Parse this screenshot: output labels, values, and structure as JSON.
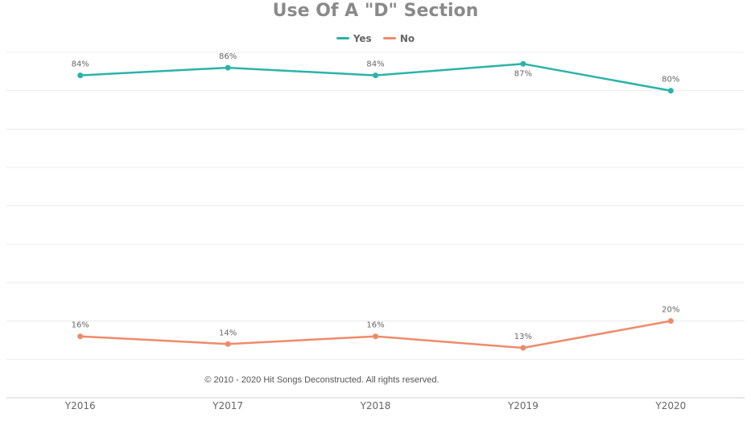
{
  "chart_data": {
    "type": "line",
    "title": "Use Of A \"D\" Section",
    "categories": [
      "Y2016",
      "Y2017",
      "Y2018",
      "Y2019",
      "Y2020"
    ],
    "series": [
      {
        "name": "Yes",
        "color": "#2bb3a9",
        "values": [
          84,
          86,
          84,
          87,
          80
        ],
        "labels": [
          "84%",
          "86%",
          "84%",
          "87%",
          "80%"
        ]
      },
      {
        "name": "No",
        "color": "#f08a6a",
        "values": [
          16,
          14,
          16,
          13,
          20
        ],
        "labels": [
          "16%",
          "14%",
          "16%",
          "13%",
          "20%"
        ]
      }
    ],
    "ylim": [
      0,
      90
    ],
    "grid": true,
    "legend_position": "top-center",
    "annotation": "© 2010 - 2020 Hit Songs Deconstructed. All rights reserved."
  }
}
